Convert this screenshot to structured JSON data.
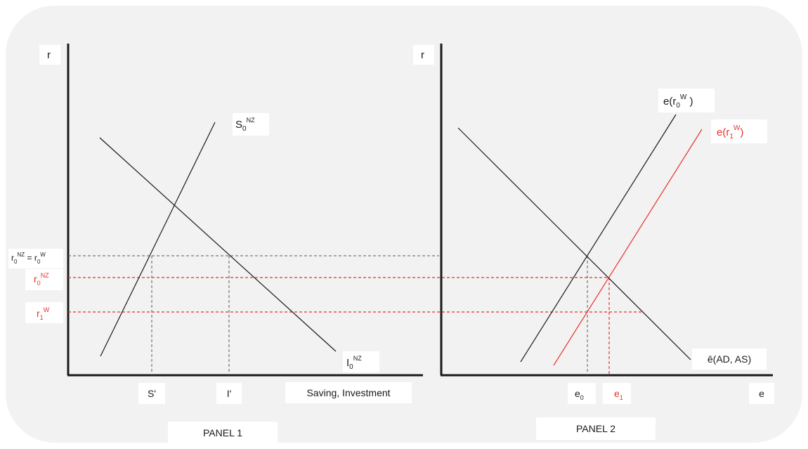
{
  "colors": {
    "black": "#1a1a1a",
    "red": "#e8312a",
    "grey": "#5a5a5a",
    "panel_bg": "#f2f2f2",
    "label_bg": "#ffffff"
  },
  "panel1": {
    "y_axis_label": "r",
    "x_axis_label": "Saving, Investment",
    "tick_s_prime": "S'",
    "tick_i_prime": "I'",
    "saving_curve": {
      "base": "S",
      "sub": "0",
      "sup": "NZ"
    },
    "investment_curve": {
      "base": "I",
      "sub": "0",
      "sup": "NZ"
    },
    "rate_world": {
      "left": {
        "base": "r",
        "sub": "0",
        "sup": "NZ"
      },
      "eq": " = ",
      "right": {
        "base": "r",
        "sub": "0",
        "sup": "W"
      }
    },
    "rate_nz": {
      "base": "r",
      "sub": "0",
      "sup": "NZ"
    },
    "rate_r1w": {
      "base": "r",
      "sub": "1",
      "sup": "W"
    },
    "panel_label": "PANEL 1"
  },
  "panel2": {
    "y_axis_label": "r",
    "x_axis_label": "e",
    "curve_e_r0w": {
      "base": "e(r",
      "sub": "0",
      "sup": "W",
      "close": " )"
    },
    "curve_e_r1w": {
      "base": "e(r",
      "sub": "1",
      "sup": "W",
      "close": ")"
    },
    "curve_ebar": "ē(AD, AS)",
    "tick_e0": {
      "base": "e",
      "sub": "0"
    },
    "tick_e1": {
      "base": "e",
      "sub": "1"
    },
    "panel_label": "PANEL 2"
  }
}
